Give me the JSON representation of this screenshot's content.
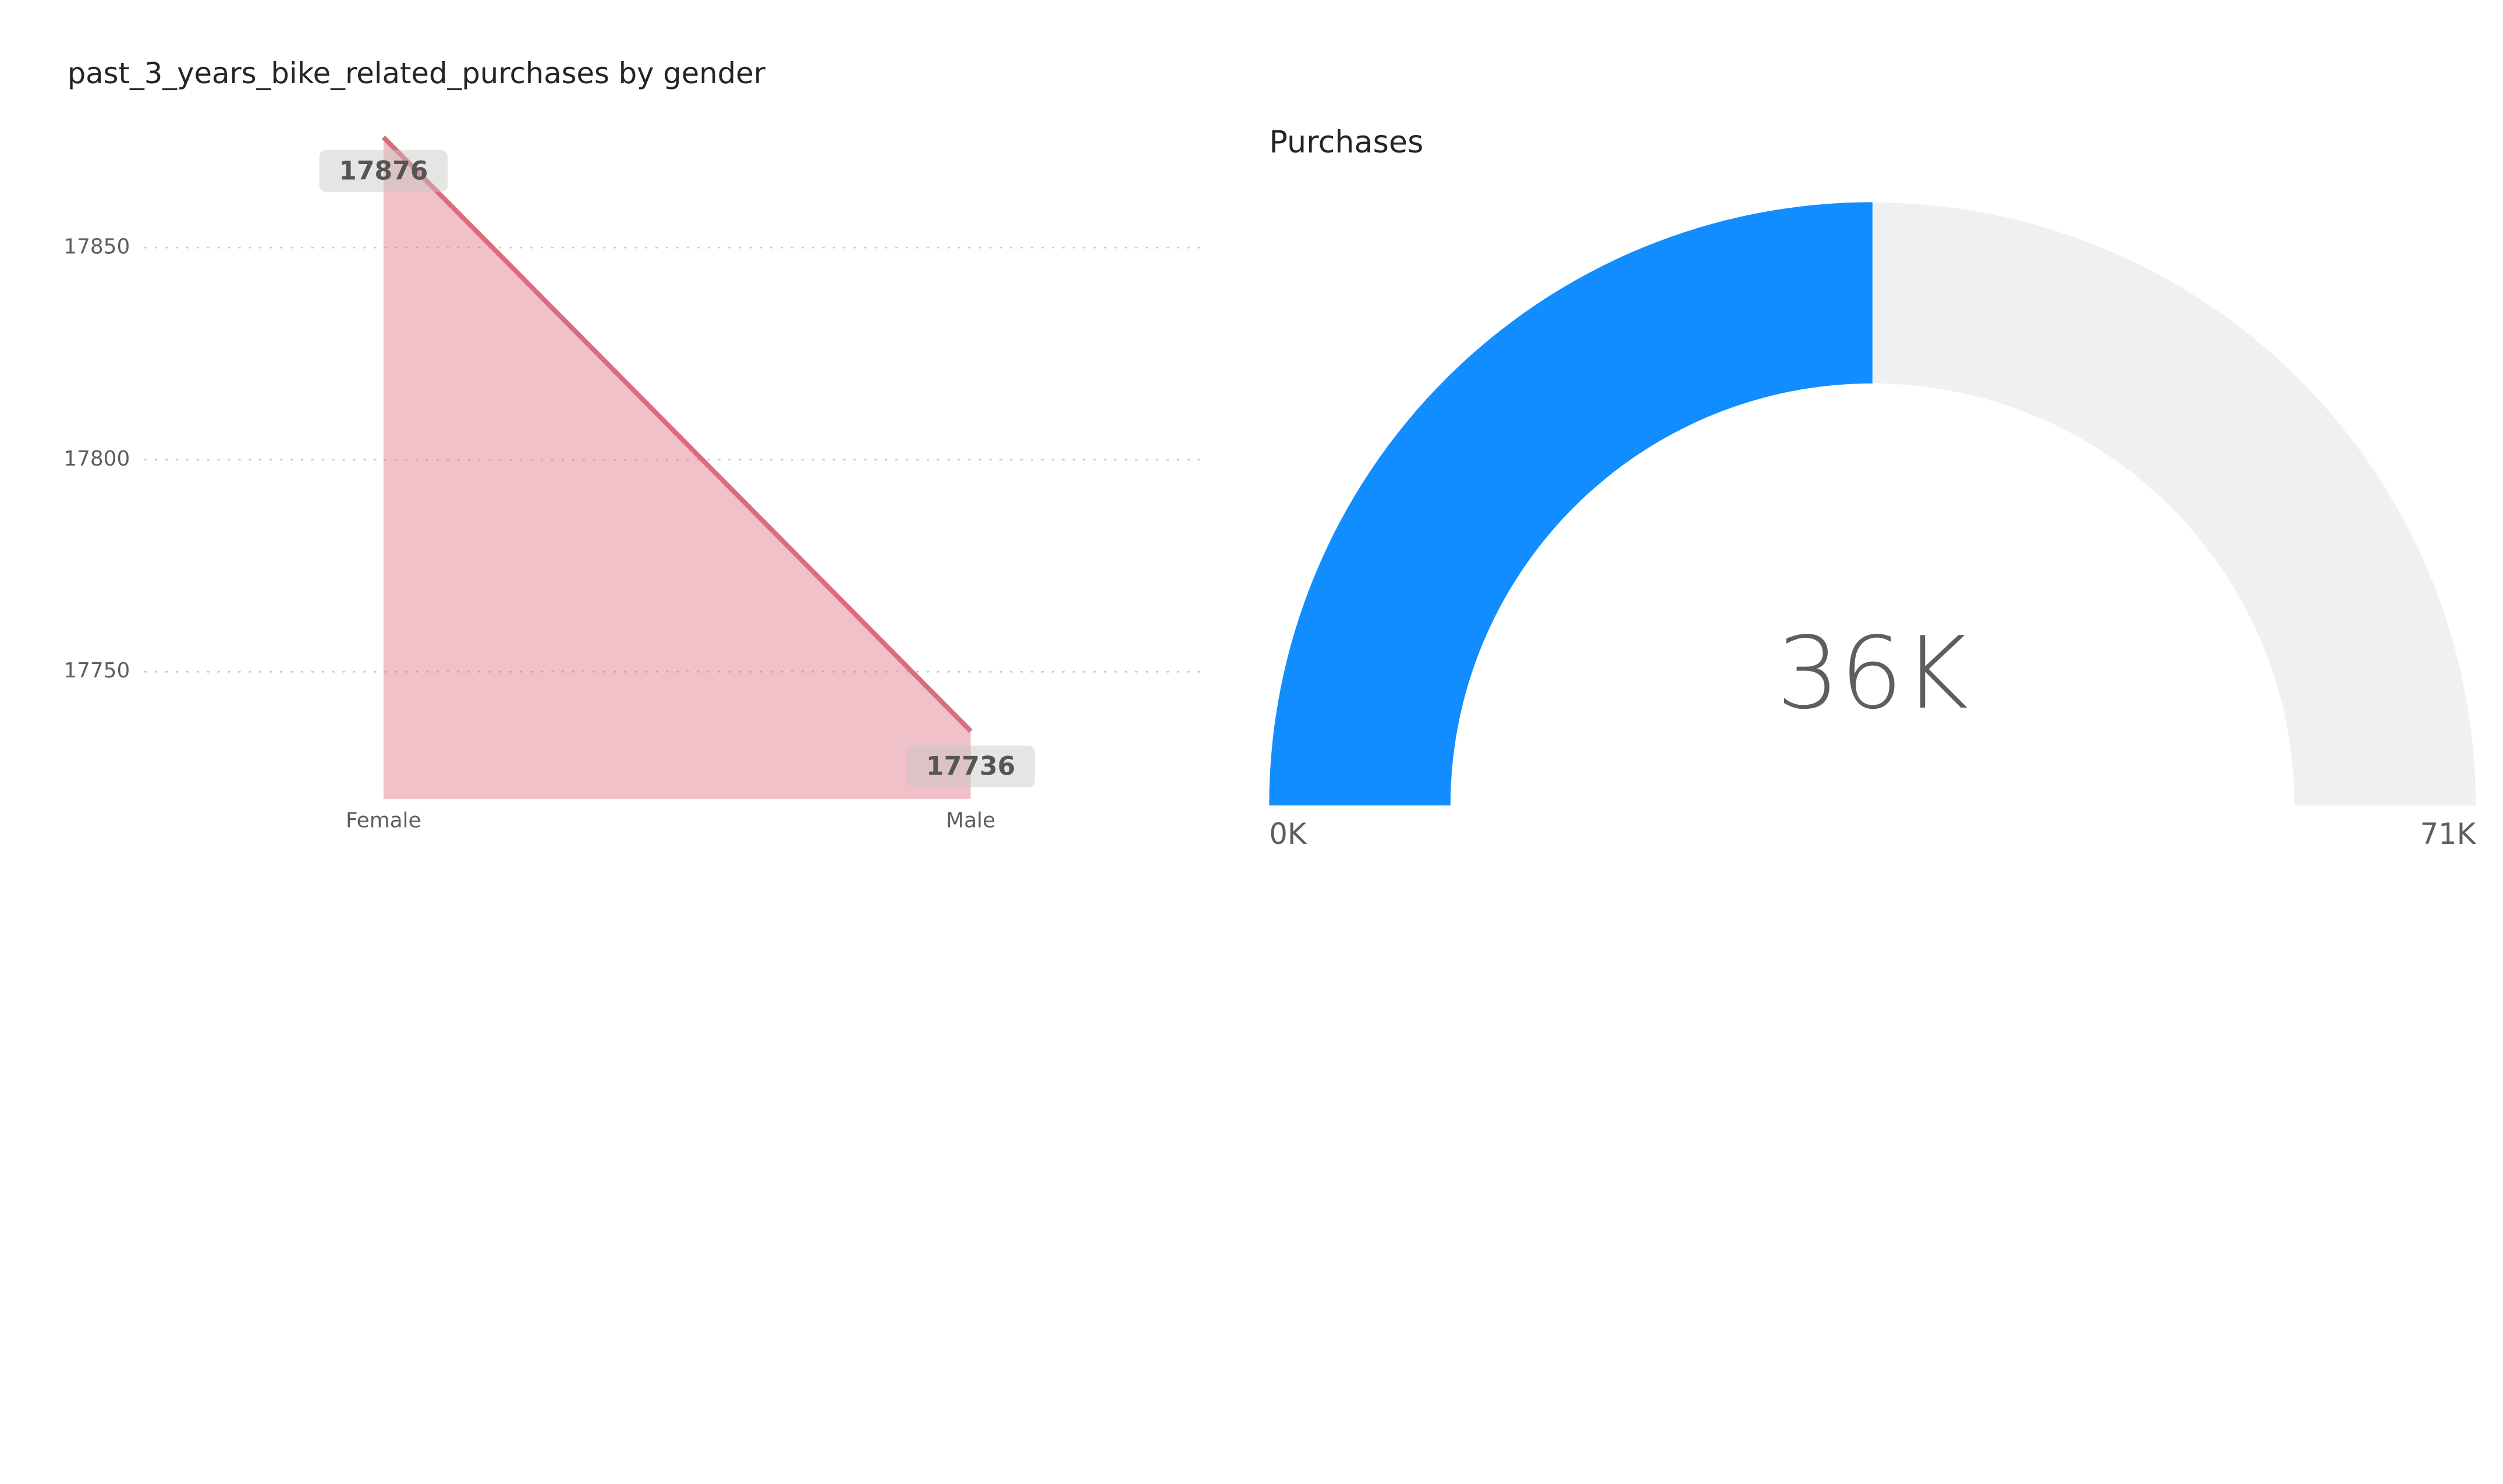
{
  "chart_data": [
    {
      "type": "area",
      "title": "past_3_years_bike_related_purchases by gender",
      "categories": [
        "Female",
        "Male"
      ],
      "values": [
        17876,
        17736
      ],
      "color": "#dd6b7f",
      "ylim": [
        17720,
        17880
      ],
      "yticks": [
        17750,
        17800,
        17850
      ],
      "grid": true
    },
    {
      "type": "gauge",
      "title": "Purchases",
      "value": 35612,
      "value_label": "36K",
      "min": {
        "value": 0,
        "label": "0K"
      },
      "max": {
        "value": 71224,
        "label": "71K"
      },
      "color": "#118dff"
    }
  ]
}
